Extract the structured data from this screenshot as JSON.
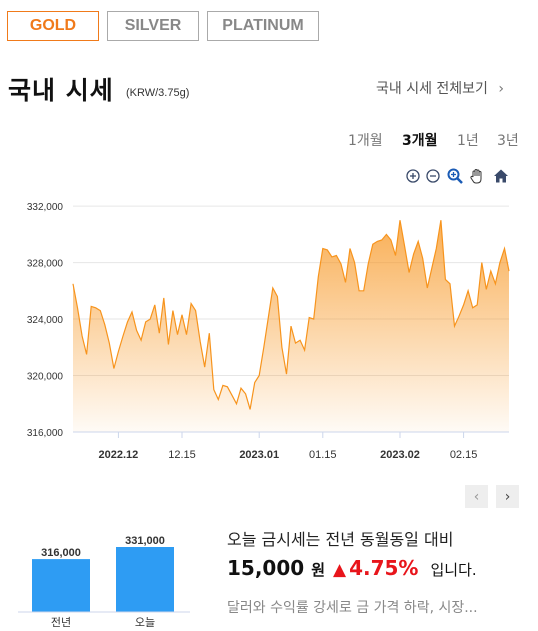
{
  "tabs": [
    {
      "label": "GOLD",
      "active": true
    },
    {
      "label": "SILVER",
      "active": false
    },
    {
      "label": "PLATINUM",
      "active": false
    }
  ],
  "header": {
    "title": "국내 시세",
    "unit": "(KRW/3.75g)",
    "view_all": "국내 시세 전체보기",
    "view_all_icon": "chevron-right-icon"
  },
  "periods": [
    {
      "label": "1개월",
      "active": false
    },
    {
      "label": "3개월",
      "active": true
    },
    {
      "label": "1년",
      "active": false
    },
    {
      "label": "3년",
      "active": false
    }
  ],
  "chart_tools": [
    "zoom-in-icon",
    "zoom-out-icon",
    "magnify-icon",
    "pan-hand-icon",
    "home-icon"
  ],
  "chart_data": {
    "type": "area",
    "ylabel": "",
    "xlabel": "",
    "ylim": [
      316000,
      333000
    ],
    "yticks": [
      "332,000",
      "328,000",
      "324,000",
      "320,000",
      "316,000"
    ],
    "ytick_values": [
      332000,
      328000,
      324000,
      320000,
      316000
    ],
    "xticks": [
      "2022.12",
      "12.15",
      "2023.01",
      "01.15",
      "2023.02",
      "02.15"
    ],
    "xtick_values": [
      "2022-12-01",
      "2022-12-15",
      "2023-01-01",
      "2023-01-15",
      "2023-02-01",
      "2023-02-15"
    ],
    "x_range": [
      "2022-11-21",
      "2023-02-25"
    ],
    "color": "#f7941d",
    "grid": "horizontal",
    "series": [
      {
        "x": [
          "2022-11-21",
          "2022-11-22",
          "2022-11-23",
          "2022-11-24",
          "2022-11-25",
          "2022-11-26",
          "2022-11-27",
          "2022-11-28",
          "2022-11-29",
          "2022-11-30",
          "2022-12-01",
          "2022-12-02",
          "2022-12-03",
          "2022-12-04",
          "2022-12-05",
          "2022-12-06",
          "2022-12-07",
          "2022-12-08",
          "2022-12-09",
          "2022-12-10",
          "2022-12-11",
          "2022-12-12",
          "2022-12-13",
          "2022-12-14",
          "2022-12-15",
          "2022-12-16",
          "2022-12-17",
          "2022-12-18",
          "2022-12-19",
          "2022-12-20",
          "2022-12-21",
          "2022-12-22",
          "2022-12-23",
          "2022-12-24",
          "2022-12-25",
          "2022-12-26",
          "2022-12-27",
          "2022-12-28",
          "2022-12-29",
          "2022-12-30",
          "2022-12-31",
          "2023-01-01",
          "2023-01-02",
          "2023-01-03",
          "2023-01-04",
          "2023-01-05",
          "2023-01-06",
          "2023-01-07",
          "2023-01-08",
          "2023-01-09",
          "2023-01-10",
          "2023-01-11",
          "2023-01-12",
          "2023-01-13",
          "2023-01-14",
          "2023-01-15",
          "2023-01-16",
          "2023-01-17",
          "2023-01-18",
          "2023-01-19",
          "2023-01-20",
          "2023-01-21",
          "2023-01-22",
          "2023-01-23",
          "2023-01-24",
          "2023-01-25",
          "2023-01-26",
          "2023-01-27",
          "2023-01-28",
          "2023-01-29",
          "2023-01-30",
          "2023-01-31",
          "2023-02-01",
          "2023-02-02",
          "2023-02-03",
          "2023-02-04",
          "2023-02-05",
          "2023-02-06",
          "2023-02-07",
          "2023-02-08",
          "2023-02-09",
          "2023-02-10",
          "2023-02-11",
          "2023-02-12",
          "2023-02-13",
          "2023-02-14",
          "2023-02-15",
          "2023-02-16",
          "2023-02-17",
          "2023-02-18",
          "2023-02-19",
          "2023-02-20",
          "2023-02-21",
          "2023-02-22",
          "2023-02-23",
          "2023-02-24",
          "2023-02-25"
        ],
        "y": [
          326500,
          324800,
          322800,
          321500,
          324900,
          324800,
          324600,
          323600,
          322300,
          320500,
          321700,
          322800,
          323800,
          324500,
          323200,
          322500,
          323800,
          324000,
          325000,
          323000,
          325500,
          322200,
          324600,
          322900,
          324300,
          322900,
          325100,
          324600,
          322400,
          320600,
          323000,
          319000,
          318300,
          319300,
          319200,
          318600,
          318000,
          319100,
          318700,
          317600,
          319500,
          320000,
          322000,
          324100,
          326200,
          325600,
          322000,
          320100,
          323500,
          322300,
          322500,
          321800,
          324100,
          324000,
          327000,
          329000,
          328900,
          328400,
          328500,
          327900,
          326600,
          329000,
          328000,
          326000,
          326000,
          327900,
          329300,
          329500,
          329600,
          330000,
          329600,
          328500,
          331000,
          329200,
          327300,
          328600,
          329500,
          328300,
          326200,
          327600,
          329000,
          331000,
          326800,
          326500,
          323500,
          324200,
          325000,
          326000,
          324800,
          325000,
          328000,
          326100,
          327400,
          326500,
          328000,
          329000,
          327400
        ]
      }
    ]
  },
  "chart_nav": {
    "prev_icon": "chevron-left-icon",
    "next_icon": "chevron-right-icon"
  },
  "bar_compare": {
    "type": "bar",
    "categories": [
      "전년",
      "오늘"
    ],
    "values": [
      316000,
      331000
    ],
    "labels": [
      "316,000",
      "331,000"
    ],
    "color": "#2e9cf3"
  },
  "summary": {
    "line1": "오늘 금시세는 전년 동월동일 대비",
    "amount": "15,000",
    "currency": "원",
    "arrow": "▲",
    "percent": "4.75%",
    "suffix": "입니다.",
    "up_color": "#e8151b",
    "news": "달러와 수익률 강세로 금 가격 하락, 시장..."
  }
}
